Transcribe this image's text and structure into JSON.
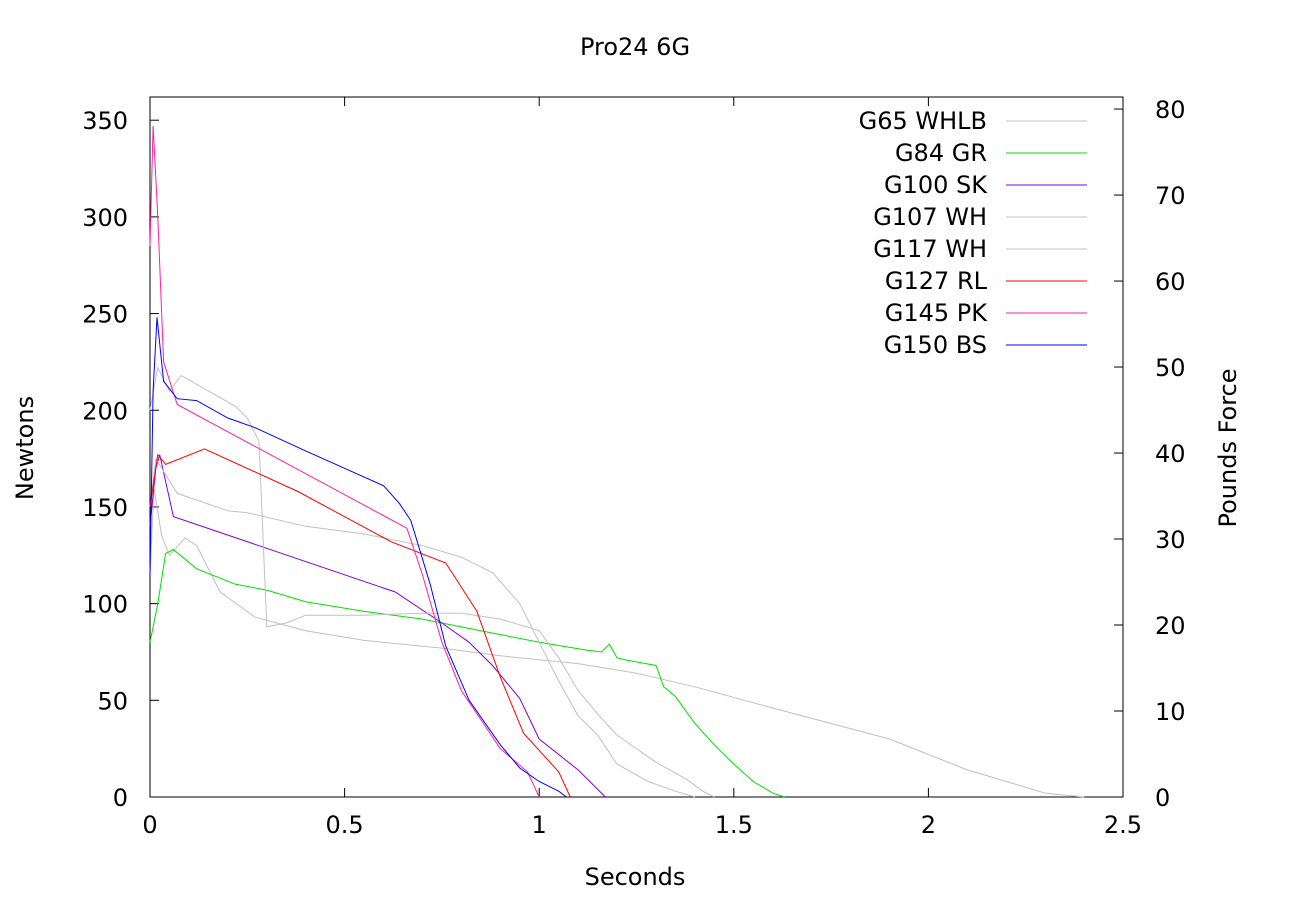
{
  "chart_data": {
    "type": "line",
    "title": "Pro24 6G",
    "xlabel": "Seconds",
    "ylabel": "Newtons",
    "y2label": "Pounds Force",
    "xlim": [
      0,
      2.5
    ],
    "ylim": [
      0,
      362
    ],
    "y2lim": [
      0,
      81.4
    ],
    "xticks": [
      "0",
      "0.5",
      "1",
      "1.5",
      "2",
      "2.5"
    ],
    "yticks": [
      "0",
      "50",
      "100",
      "150",
      "200",
      "250",
      "300",
      "350"
    ],
    "y2ticks": [
      "0",
      "10",
      "20",
      "30",
      "40",
      "50",
      "60",
      "70",
      "80"
    ],
    "grid": false,
    "legend_position": "top-right",
    "series": [
      {
        "name": "G65 WHLB",
        "color": "#c0c0c0",
        "points": [
          [
            0,
            115
          ],
          [
            0.01,
            160
          ],
          [
            0.03,
            135
          ],
          [
            0.05,
            125
          ],
          [
            0.09,
            134
          ],
          [
            0.12,
            130
          ],
          [
            0.18,
            106
          ],
          [
            0.27,
            93
          ],
          [
            0.4,
            86
          ],
          [
            0.55,
            81
          ],
          [
            0.75,
            77
          ],
          [
            0.9,
            73
          ],
          [
            1.1,
            69
          ],
          [
            1.25,
            64
          ],
          [
            1.4,
            57
          ],
          [
            1.6,
            46
          ],
          [
            1.9,
            30
          ],
          [
            2.1,
            14
          ],
          [
            2.3,
            2
          ],
          [
            2.4,
            0
          ]
        ]
      },
      {
        "name": "G84 GR",
        "color": "#00e000",
        "points": [
          [
            0,
            80
          ],
          [
            0.02,
            100
          ],
          [
            0.04,
            126
          ],
          [
            0.06,
            128
          ],
          [
            0.12,
            118
          ],
          [
            0.22,
            110
          ],
          [
            0.3,
            107
          ],
          [
            0.4,
            101
          ],
          [
            0.55,
            96
          ],
          [
            0.7,
            92
          ],
          [
            0.85,
            86
          ],
          [
            1.0,
            80
          ],
          [
            1.12,
            76
          ],
          [
            1.16,
            75
          ],
          [
            1.18,
            79
          ],
          [
            1.2,
            72
          ],
          [
            1.22,
            71
          ],
          [
            1.3,
            68
          ],
          [
            1.32,
            57
          ],
          [
            1.35,
            52
          ],
          [
            1.4,
            38
          ],
          [
            1.45,
            27
          ],
          [
            1.5,
            17
          ],
          [
            1.55,
            8
          ],
          [
            1.6,
            2
          ],
          [
            1.63,
            0
          ]
        ]
      },
      {
        "name": "G100 SK",
        "color": "#8000e0",
        "points": [
          [
            0,
            140
          ],
          [
            0.015,
            170
          ],
          [
            0.025,
            177
          ],
          [
            0.06,
            145
          ],
          [
            0.63,
            106
          ],
          [
            0.75,
            90
          ],
          [
            0.82,
            80
          ],
          [
            0.88,
            68
          ],
          [
            0.95,
            51
          ],
          [
            1.0,
            30
          ],
          [
            1.1,
            14
          ],
          [
            1.17,
            0
          ]
        ]
      },
      {
        "name": "G107 WH",
        "color": "#c0c0c0",
        "points": [
          [
            0,
            150
          ],
          [
            0.015,
            175
          ],
          [
            0.03,
            170
          ],
          [
            0.07,
            157
          ],
          [
            0.2,
            148
          ],
          [
            0.25,
            147
          ],
          [
            0.4,
            140
          ],
          [
            0.55,
            136
          ],
          [
            0.7,
            130
          ],
          [
            0.8,
            124
          ],
          [
            0.88,
            116
          ],
          [
            0.95,
            100
          ],
          [
            1.0,
            80
          ],
          [
            1.05,
            60
          ],
          [
            1.1,
            42
          ],
          [
            1.15,
            32
          ],
          [
            1.2,
            17
          ],
          [
            1.28,
            8
          ],
          [
            1.35,
            3
          ],
          [
            1.4,
            0
          ]
        ]
      },
      {
        "name": "G117 WH",
        "color": "#c0c0c0",
        "points": [
          [
            0,
            200
          ],
          [
            0.02,
            222
          ],
          [
            0.05,
            210
          ],
          [
            0.08,
            218
          ],
          [
            0.15,
            210
          ],
          [
            0.22,
            202
          ],
          [
            0.25,
            196
          ],
          [
            0.28,
            184
          ],
          [
            0.3,
            88
          ],
          [
            0.35,
            90
          ],
          [
            0.4,
            94
          ],
          [
            0.55,
            94
          ],
          [
            0.7,
            95
          ],
          [
            0.8,
            95
          ],
          [
            0.9,
            92
          ],
          [
            1.0,
            86
          ],
          [
            1.05,
            72
          ],
          [
            1.1,
            55
          ],
          [
            1.15,
            43
          ],
          [
            1.2,
            32
          ],
          [
            1.3,
            18
          ],
          [
            1.38,
            9
          ],
          [
            1.42,
            3
          ],
          [
            1.45,
            0
          ]
        ]
      },
      {
        "name": "G127 RL",
        "color": "#ff0000",
        "points": [
          [
            0,
            150
          ],
          [
            0.02,
            177
          ],
          [
            0.04,
            172
          ],
          [
            0.14,
            180
          ],
          [
            0.38,
            158
          ],
          [
            0.62,
            132
          ],
          [
            0.76,
            121
          ],
          [
            0.84,
            96
          ],
          [
            0.9,
            62
          ],
          [
            0.96,
            33
          ],
          [
            1.05,
            13
          ],
          [
            1.08,
            0
          ]
        ]
      },
      {
        "name": "G145 PK",
        "color": "#ff20a0",
        "points": [
          [
            0,
            285
          ],
          [
            0.008,
            347
          ],
          [
            0.02,
            300
          ],
          [
            0.035,
            225
          ],
          [
            0.07,
            203
          ],
          [
            0.66,
            139
          ],
          [
            0.7,
            115
          ],
          [
            0.75,
            80
          ],
          [
            0.8,
            55
          ],
          [
            0.9,
            25
          ],
          [
            0.97,
            13
          ],
          [
            1.0,
            0
          ]
        ]
      },
      {
        "name": "G150 BS",
        "color": "#0000ff",
        "points": [
          [
            0,
            115
          ],
          [
            0.008,
            210
          ],
          [
            0.018,
            248
          ],
          [
            0.035,
            215
          ],
          [
            0.07,
            206
          ],
          [
            0.12,
            205
          ],
          [
            0.2,
            196
          ],
          [
            0.27,
            191
          ],
          [
            0.4,
            179
          ],
          [
            0.5,
            170
          ],
          [
            0.6,
            161
          ],
          [
            0.64,
            152
          ],
          [
            0.67,
            143
          ],
          [
            0.72,
            110
          ],
          [
            0.76,
            78
          ],
          [
            0.82,
            50
          ],
          [
            0.9,
            27
          ],
          [
            0.95,
            15
          ],
          [
            1.0,
            8
          ],
          [
            1.05,
            3
          ],
          [
            1.07,
            0
          ]
        ]
      }
    ]
  }
}
